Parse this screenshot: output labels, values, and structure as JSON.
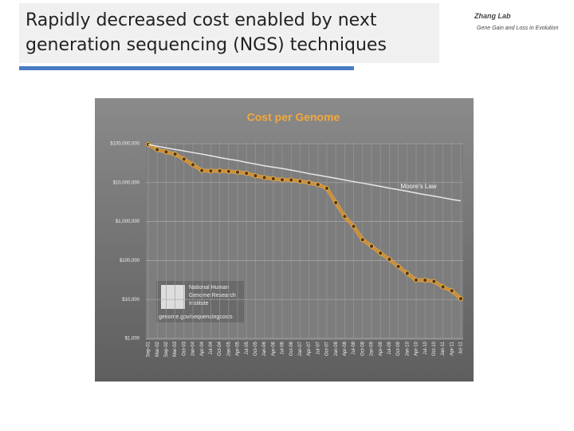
{
  "slide": {
    "title_line1": "Rapidly decreased cost enabled by next",
    "title_line2": "generation sequencing (NGS) techniques",
    "logo_title": "Zhang Lab",
    "logo_subtitle": "Gene Gain and Loss in Evolution"
  },
  "chart_data": {
    "type": "line",
    "title": "Cost per Genome",
    "log_scale": true,
    "grid": true,
    "annotations": [
      "Moore's Law"
    ],
    "source": {
      "line1": "National Human",
      "line2": "Genome Research",
      "line3": "Institute",
      "url": "genome.gov/sequencingcosts"
    },
    "categories": [
      "Sep-01",
      "Mar-02",
      "Sep-02",
      "Mar-03",
      "Oct-03",
      "Jan-04",
      "Apr-04",
      "Jul-04",
      "Oct-04",
      "Jan-05",
      "Apr-05",
      "Jul-05",
      "Oct-05",
      "Jan-06",
      "Apr-06",
      "Jul-06",
      "Oct-06",
      "Jan-07",
      "Apr-07",
      "Jul-07",
      "Oct-07",
      "Jan-08",
      "Apr-08",
      "Jul-08",
      "Oct-08",
      "Jan-09",
      "Apr-09",
      "Jul-09",
      "Oct-09",
      "Jan-10",
      "Apr-10",
      "Jul-10",
      "Oct-10",
      "Jan-11",
      "Apr-11",
      "Jul-11"
    ],
    "series": [
      {
        "name": "Cost per Genome",
        "color": "#f2a93b",
        "values": [
          95263072,
          70175437,
          61448422,
          53751684,
          40157554,
          28780376,
          20442576,
          19934346,
          20020321,
          19399940,
          18531038,
          17351243,
          15036256,
          13488733,
          12582288,
          11847870,
          11728044,
          10886300,
          9935032,
          8876805,
          7147571,
          3063820,
          1352982,
          752080,
          342502,
          232735,
          154714,
          108065,
          70333,
          46774,
          31512,
          31125,
          29092,
          20963,
          16712,
          10497
        ]
      },
      {
        "name": "Moore's Law",
        "color": "#e8e8e8",
        "values": [
          95000000,
          86000000,
          78000000,
          71000000,
          65000000,
          59000000,
          54000000,
          49000000,
          44000000,
          40000000,
          37000000,
          33000000,
          30000000,
          27000000,
          25000000,
          23000000,
          21000000,
          19000000,
          17000000,
          15600000,
          14200000,
          12900000,
          11700000,
          10600000,
          9700000,
          8800000,
          8000000,
          7200000,
          6600000,
          6000000,
          5400000,
          4900000,
          4500000,
          4100000,
          3700000,
          3400000
        ]
      }
    ],
    "ylim": [
      1000,
      100000000
    ],
    "yticks": [
      {
        "value": 1000,
        "label": "$1,000"
      },
      {
        "value": 10000,
        "label": "$10,000"
      },
      {
        "value": 100000,
        "label": "$100,000"
      },
      {
        "value": 1000000,
        "label": "$1,000,000"
      },
      {
        "value": 10000000,
        "label": "$10,000,000"
      },
      {
        "value": 100000000,
        "label": "$100,000,000"
      }
    ]
  }
}
